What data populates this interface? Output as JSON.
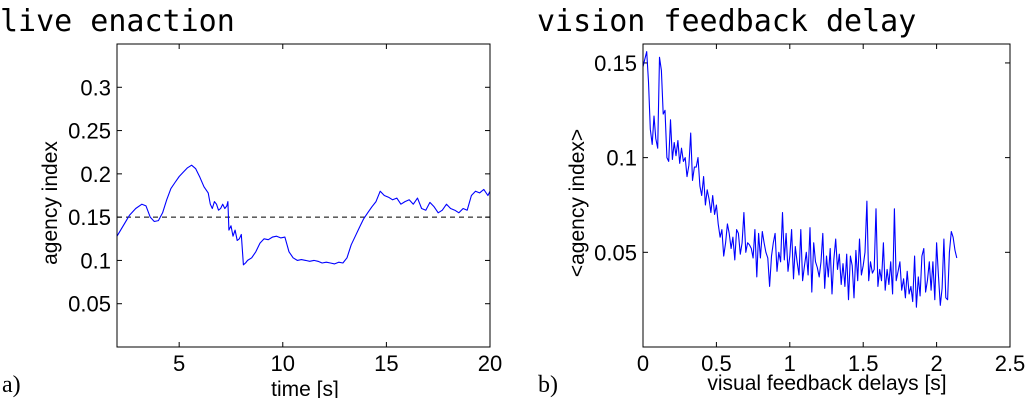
{
  "chart_data": [
    {
      "type": "line",
      "panel_label": "a)",
      "title": "live enaction",
      "xlabel": "time [s]",
      "ylabel": "agency index",
      "xlim": [
        2,
        20
      ],
      "ylim": [
        0,
        0.35
      ],
      "xticks": [
        5,
        10,
        15,
        20
      ],
      "xtick_labels": [
        "5",
        "10",
        "15",
        "20"
      ],
      "yticks": [
        0.05,
        0.1,
        0.15,
        0.2,
        0.25,
        0.3
      ],
      "ytick_labels": [
        "0.05",
        "0.1",
        "0.15",
        "0.2",
        "0.25",
        "0.3"
      ],
      "grid": false,
      "reference_line": {
        "y": 0.15,
        "style": "dashed"
      },
      "series": [
        {
          "color": "#0000ff",
          "x": [
            2.0,
            2.3,
            2.6,
            2.9,
            3.2,
            3.4,
            3.6,
            3.8,
            4.0,
            4.2,
            4.4,
            4.6,
            4.8,
            5.0,
            5.2,
            5.4,
            5.6,
            5.8,
            6.0,
            6.2,
            6.4,
            6.5,
            6.6,
            6.7,
            6.8,
            6.9,
            7.0,
            7.1,
            7.2,
            7.3,
            7.35,
            7.4,
            7.5,
            7.6,
            7.7,
            7.8,
            7.9,
            8.0,
            8.1,
            8.2,
            8.3,
            8.5,
            8.7,
            8.9,
            9.1,
            9.3,
            9.5,
            9.7,
            9.9,
            10.1,
            10.3,
            10.5,
            10.7,
            10.9,
            11.1,
            11.3,
            11.5,
            11.7,
            11.9,
            12.1,
            12.3,
            12.5,
            12.7,
            12.9,
            13.1,
            13.3,
            13.5,
            13.7,
            13.9,
            14.1,
            14.3,
            14.5,
            14.7,
            14.9,
            15.1,
            15.3,
            15.5,
            15.7,
            15.9,
            16.1,
            16.3,
            16.5,
            16.7,
            16.9,
            17.1,
            17.3,
            17.5,
            17.7,
            17.9,
            18.1,
            18.3,
            18.5,
            18.7,
            18.9,
            19.1,
            19.3,
            19.5,
            19.7,
            19.9,
            20.0
          ],
          "y": [
            0.128,
            0.14,
            0.152,
            0.16,
            0.165,
            0.163,
            0.15,
            0.145,
            0.146,
            0.155,
            0.17,
            0.183,
            0.19,
            0.197,
            0.202,
            0.207,
            0.21,
            0.206,
            0.196,
            0.185,
            0.178,
            0.165,
            0.16,
            0.168,
            0.165,
            0.158,
            0.16,
            0.165,
            0.16,
            0.163,
            0.168,
            0.135,
            0.14,
            0.128,
            0.135,
            0.123,
            0.125,
            0.13,
            0.095,
            0.097,
            0.1,
            0.103,
            0.11,
            0.12,
            0.125,
            0.124,
            0.127,
            0.128,
            0.126,
            0.127,
            0.11,
            0.103,
            0.1,
            0.101,
            0.1,
            0.099,
            0.1,
            0.099,
            0.097,
            0.098,
            0.097,
            0.096,
            0.098,
            0.097,
            0.103,
            0.118,
            0.128,
            0.138,
            0.148,
            0.155,
            0.162,
            0.168,
            0.18,
            0.175,
            0.173,
            0.17,
            0.172,
            0.165,
            0.168,
            0.17,
            0.165,
            0.172,
            0.16,
            0.158,
            0.167,
            0.162,
            0.155,
            0.158,
            0.165,
            0.16,
            0.158,
            0.155,
            0.16,
            0.158,
            0.175,
            0.18,
            0.178,
            0.182,
            0.175,
            0.18
          ]
        }
      ]
    },
    {
      "type": "line",
      "panel_label": "b)",
      "title": "vision feedback delay",
      "xlabel": "visual feedback delays [s]",
      "ylabel": "<agency index>",
      "xlim": [
        0,
        2.5
      ],
      "ylim": [
        0,
        0.16
      ],
      "xticks": [
        0,
        0.5,
        1,
        1.5,
        2,
        2.5
      ],
      "xtick_labels": [
        "0",
        "0.5",
        "1",
        "1.5",
        "2",
        "2.5"
      ],
      "yticks": [
        0.05,
        0.1,
        0.15
      ],
      "ytick_labels": [
        "0.05",
        "0.1",
        "0.15"
      ],
      "grid": false,
      "series": [
        {
          "color": "#0000ff",
          "x_start": 0.0,
          "x_step": 0.0125,
          "y": [
            0.148,
            0.152,
            0.156,
            0.14,
            0.115,
            0.107,
            0.122,
            0.11,
            0.105,
            0.153,
            0.146,
            0.123,
            0.125,
            0.1,
            0.098,
            0.12,
            0.099,
            0.108,
            0.101,
            0.109,
            0.097,
            0.105,
            0.098,
            0.1,
            0.09,
            0.096,
            0.113,
            0.088,
            0.095,
            0.095,
            0.1,
            0.085,
            0.08,
            0.09,
            0.075,
            0.083,
            0.078,
            0.071,
            0.08,
            0.07,
            0.075,
            0.065,
            0.058,
            0.062,
            0.048,
            0.055,
            0.065,
            0.06,
            0.052,
            0.058,
            0.046,
            0.062,
            0.06,
            0.049,
            0.055,
            0.071,
            0.05,
            0.055,
            0.054,
            0.052,
            0.047,
            0.062,
            0.037,
            0.06,
            0.047,
            0.061,
            0.055,
            0.05,
            0.047,
            0.032,
            0.048,
            0.055,
            0.06,
            0.04,
            0.05,
            0.045,
            0.071,
            0.046,
            0.06,
            0.04,
            0.048,
            0.062,
            0.036,
            0.053,
            0.045,
            0.038,
            0.062,
            0.035,
            0.043,
            0.05,
            0.038,
            0.063,
            0.029,
            0.055,
            0.045,
            0.042,
            0.037,
            0.045,
            0.06,
            0.031,
            0.048,
            0.037,
            0.052,
            0.028,
            0.046,
            0.057,
            0.041,
            0.049,
            0.033,
            0.044,
            0.032,
            0.049,
            0.025,
            0.048,
            0.043,
            0.026,
            0.051,
            0.035,
            0.057,
            0.038,
            0.043,
            0.05,
            0.077,
            0.035,
            0.045,
            0.039,
            0.041,
            0.073,
            0.032,
            0.041,
            0.035,
            0.055,
            0.03,
            0.041,
            0.033,
            0.045,
            0.028,
            0.073,
            0.035,
            0.04,
            0.045,
            0.03,
            0.036,
            0.026,
            0.04,
            0.028,
            0.032,
            0.024,
            0.048,
            0.021,
            0.037,
            0.027,
            0.048,
            0.052,
            0.029,
            0.035,
            0.045,
            0.03,
            0.045,
            0.025,
            0.055,
            0.038,
            0.022,
            0.031,
            0.057,
            0.026,
            0.025,
            0.05,
            0.061,
            0.058,
            0.051,
            0.047
          ]
        }
      ]
    }
  ]
}
